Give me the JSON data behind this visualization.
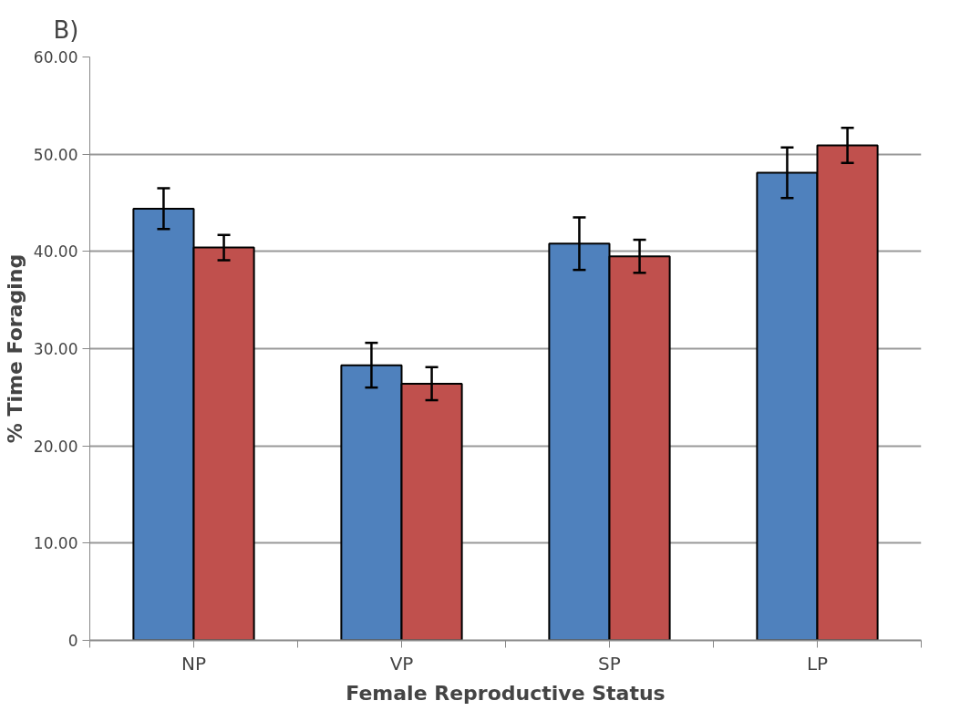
{
  "chart_data": {
    "type": "bar",
    "title": "B)",
    "xlabel": "Female Reproductive Status",
    "ylabel": "% Time Foraging",
    "categories": [
      "NP",
      "VP",
      "SP",
      "LP"
    ],
    "series": [
      {
        "color": "#4f81bd",
        "values": [
          44.4,
          28.3,
          40.8,
          48.1
        ],
        "errors": [
          2.1,
          2.3,
          2.7,
          2.6
        ]
      },
      {
        "color": "#c0504d",
        "values": [
          40.4,
          26.4,
          39.5,
          50.9
        ],
        "errors": [
          1.3,
          1.7,
          1.7,
          1.8
        ]
      }
    ],
    "ylim": [
      0,
      60
    ],
    "yticks": [
      {
        "value": 0,
        "label": "0"
      },
      {
        "value": 10,
        "label": "10.00"
      },
      {
        "value": 20,
        "label": "20.00"
      },
      {
        "value": 30,
        "label": "30.00"
      },
      {
        "value": 40,
        "label": "40.00"
      },
      {
        "value": 50,
        "label": "50.00"
      },
      {
        "value": 60,
        "label": "60.00"
      }
    ],
    "grid": "y"
  }
}
